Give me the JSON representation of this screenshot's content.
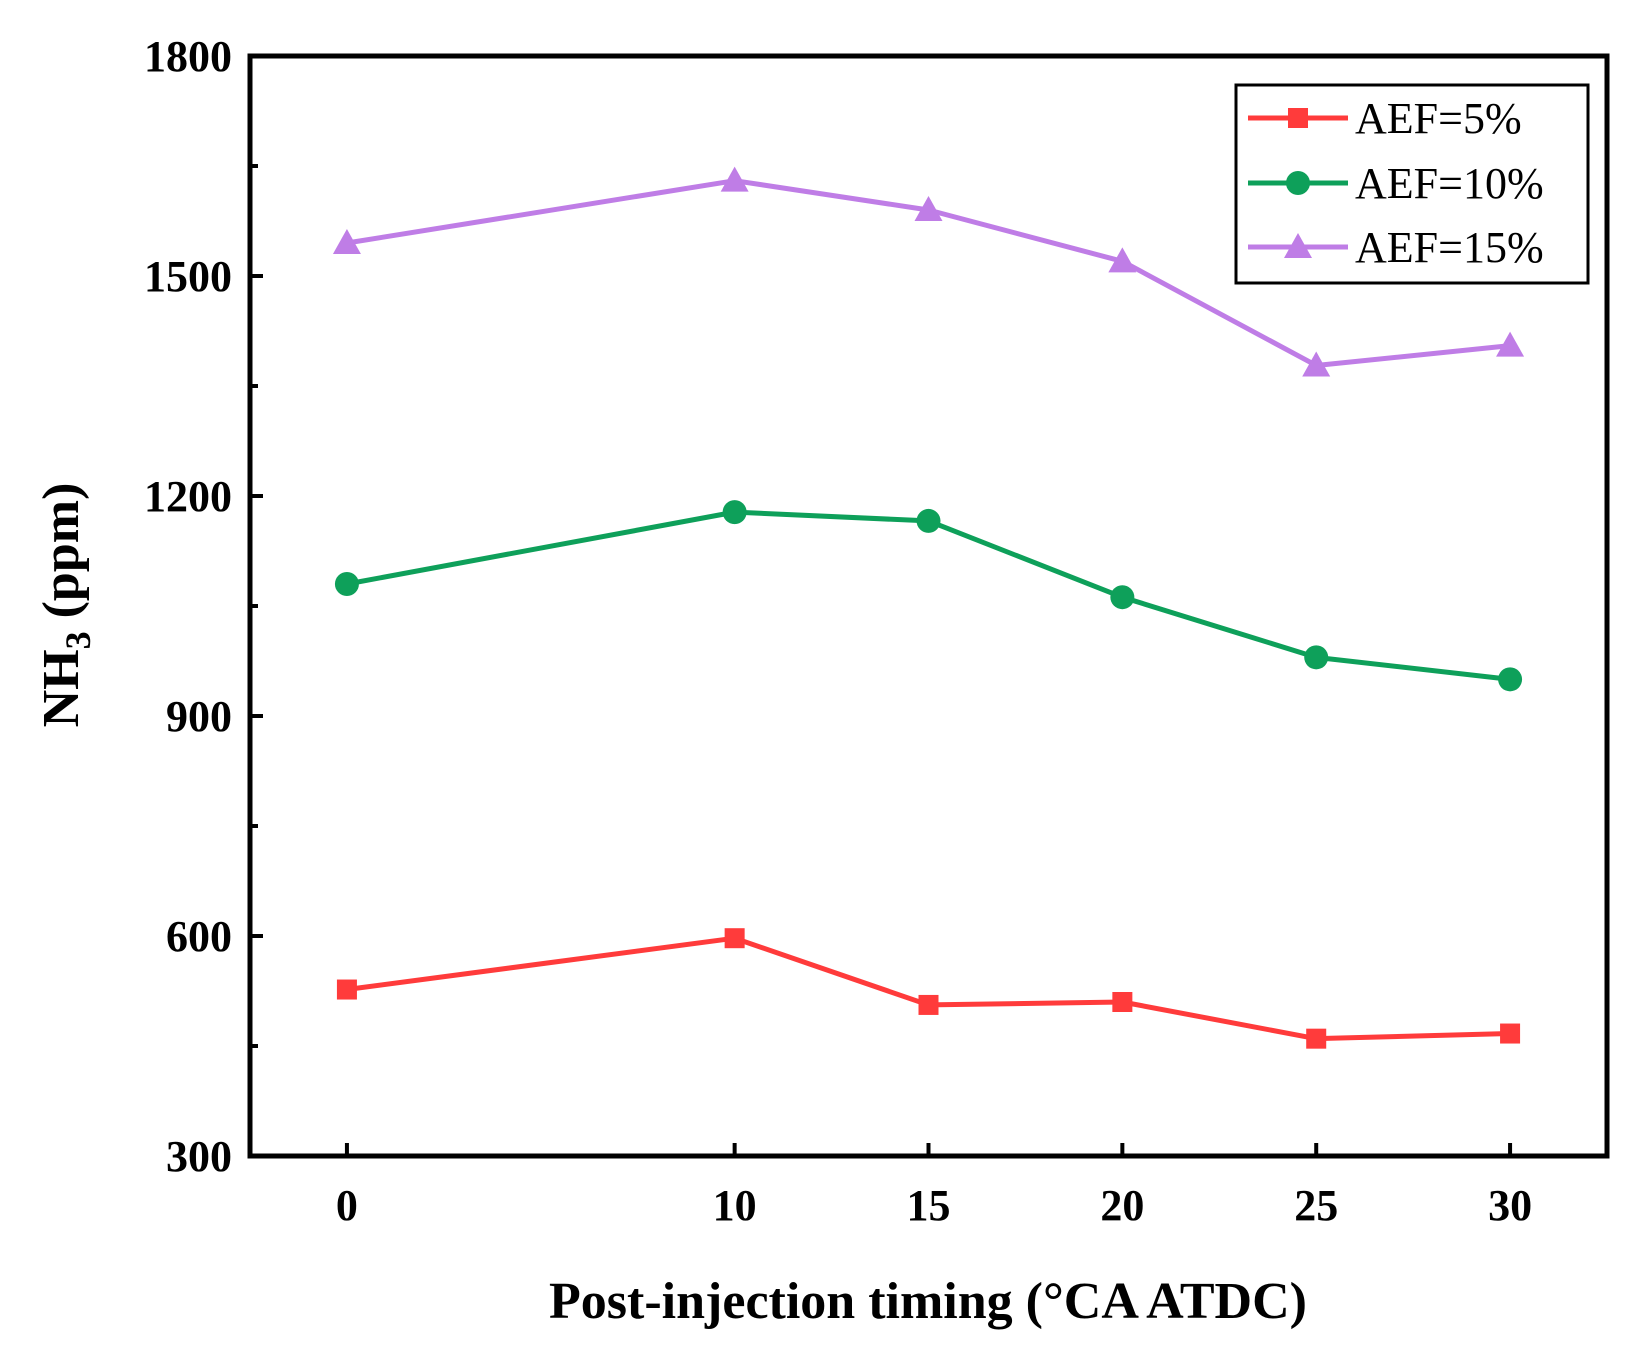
{
  "chart_data": {
    "type": "line",
    "title": "",
    "xlabel": "Post-injection timing (°CA ATDC)",
    "ylabel": {
      "main": "NH",
      "sub": "3",
      "rest": " (ppm)"
    },
    "x": [
      0,
      10,
      15,
      20,
      25,
      30
    ],
    "x_tick_labels": [
      "0",
      "10",
      "15",
      "20",
      "25",
      "30"
    ],
    "xlim": [
      -2.5,
      32.5
    ],
    "ylim": [
      300,
      1800
    ],
    "y_ticks": [
      300,
      600,
      900,
      1200,
      1500,
      1800
    ],
    "y_tick_labels": [
      "300",
      "600",
      "900",
      "1200",
      "1500",
      "1800"
    ],
    "legend_position": "top-right",
    "series": [
      {
        "name": "AEF=5%",
        "color": "#ff3b3b",
        "marker": "square",
        "values": [
          527,
          597,
          506,
          510,
          460,
          467
        ]
      },
      {
        "name": "AEF=10%",
        "color": "#0ea05a",
        "marker": "circle",
        "values": [
          1080,
          1178,
          1166,
          1062,
          980,
          950
        ]
      },
      {
        "name": "AEF=15%",
        "color": "#bf7de6",
        "marker": "triangle",
        "values": [
          1545,
          1630,
          1590,
          1520,
          1378,
          1405
        ]
      }
    ]
  }
}
